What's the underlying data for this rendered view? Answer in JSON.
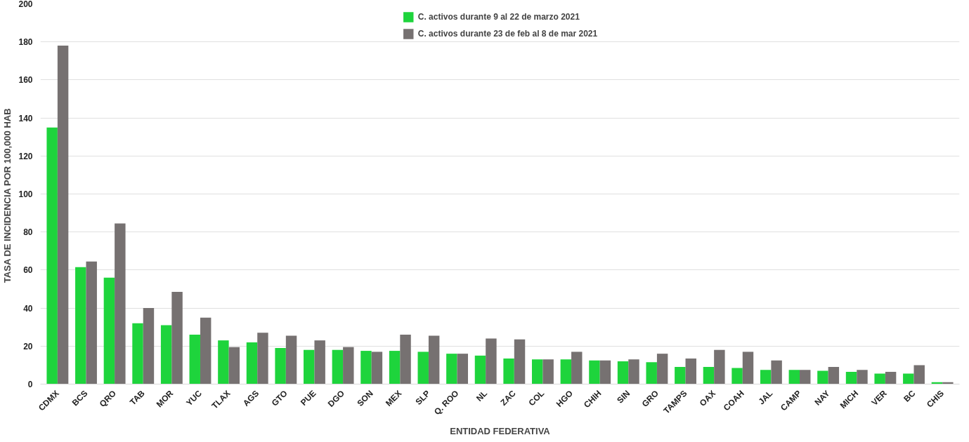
{
  "chart_data": {
    "type": "bar",
    "xlabel": "ENTIDAD FEDERATIVA",
    "ylabel": "TASA DE INCIDENCIA  POR 100,000 HAB",
    "categories": [
      "CDMX",
      "BCS",
      "QRO",
      "TAB",
      "MOR",
      "YUC",
      "TLAX",
      "AGS",
      "GTO",
      "PUE",
      "DGO",
      "SON",
      "MEX",
      "SLP",
      "Q. ROO",
      "NL",
      "ZAC",
      "COL",
      "HGO",
      "CHIH",
      "SIN",
      "GRO",
      "TAMPS",
      "OAX",
      "COAH",
      "JAL",
      "CAMP",
      "NAY",
      "MICH",
      "VER",
      "BC",
      "CHIS"
    ],
    "series": [
      {
        "name": "C. activos durante 9 al 22 de marzo 2021",
        "color": "#1ed43c",
        "values": [
          135,
          61.5,
          56,
          32,
          31,
          26,
          23,
          22,
          19,
          18,
          18,
          17.5,
          17.5,
          17,
          16,
          15,
          13.5,
          13,
          13,
          12.5,
          12,
          11.5,
          9,
          9,
          8.5,
          7.5,
          7.5,
          7,
          6.5,
          5.5,
          5.5,
          1
        ]
      },
      {
        "name": "C. activos durante 23 de feb al 8 de mar 2021",
        "color": "#767171",
        "values": [
          178,
          64.5,
          84.5,
          40,
          48.5,
          35,
          19.5,
          27,
          25.5,
          23,
          19.5,
          17,
          26,
          25.5,
          16,
          24,
          23.5,
          13,
          17,
          12.5,
          13,
          16,
          13.5,
          18,
          17,
          12.5,
          7.5,
          9,
          7.5,
          6.5,
          10,
          1
        ]
      }
    ],
    "ylim": [
      0,
      200
    ],
    "yticks": [
      0,
      20,
      40,
      60,
      80,
      100,
      120,
      140,
      160,
      180,
      200
    ],
    "grid": "y",
    "legend": "top"
  }
}
